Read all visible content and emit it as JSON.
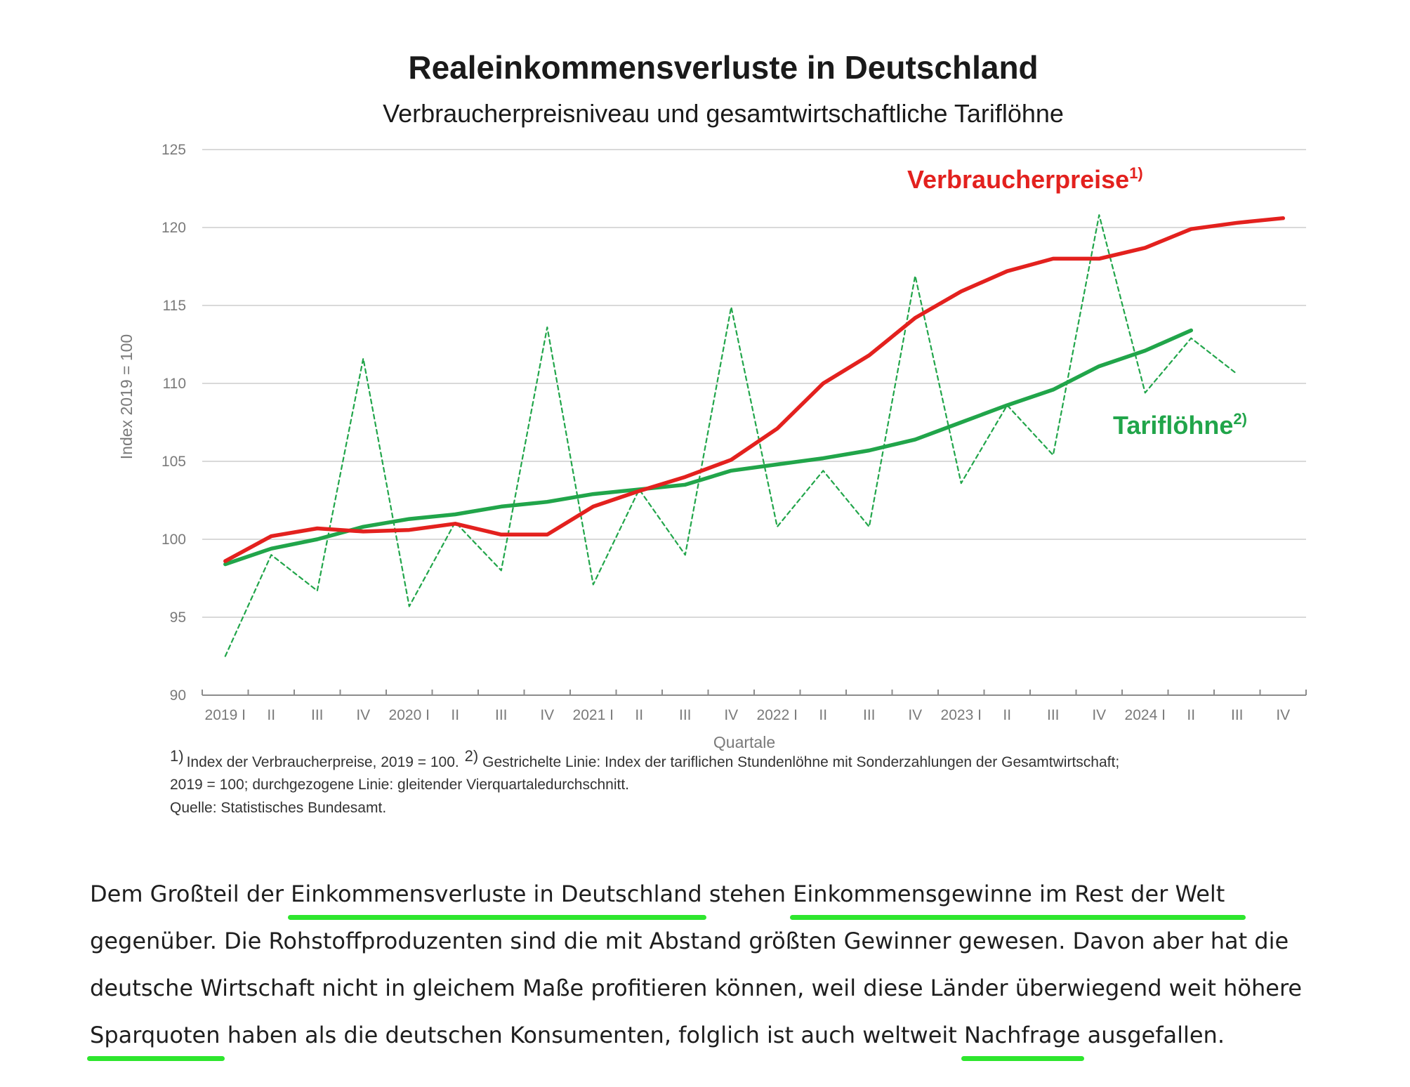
{
  "chart_data": {
    "type": "line",
    "title": "Realeinkommensverluste in Deutschland",
    "subtitle": "Verbraucherpreisniveau und gesamtwirtschaftliche Tariflöhne",
    "xlabel": "Quartale",
    "ylabel": "Index 2019 = 100",
    "ylim": [
      90,
      125
    ],
    "yticks": [
      90,
      95,
      100,
      105,
      110,
      115,
      120,
      125
    ],
    "grid": true,
    "categories": [
      "2019 I",
      "II",
      "III",
      "IV",
      "2020 I",
      "II",
      "III",
      "IV",
      "2021 I",
      "II",
      "III",
      "IV",
      "2022 I",
      "II",
      "III",
      "IV",
      "2023 I",
      "II",
      "III",
      "IV",
      "2024 I",
      "II",
      "III",
      "IV"
    ],
    "series": [
      {
        "name": "Verbraucherpreise",
        "sup": "1)",
        "style": "solid",
        "color": "#e3211e",
        "values": [
          98.6,
          100.2,
          100.7,
          100.5,
          100.6,
          101.0,
          100.3,
          100.3,
          102.1,
          103.1,
          104.0,
          105.1,
          107.1,
          110.0,
          111.8,
          114.2,
          115.9,
          117.2,
          118.0,
          118.0,
          118.7,
          119.9,
          120.3,
          120.6
        ]
      },
      {
        "name": "Tariflöhne",
        "sup": "2)",
        "style": "dashed",
        "color": "#21a54a",
        "values": [
          92.5,
          99.0,
          96.7,
          111.6,
          95.7,
          101.1,
          98.0,
          113.6,
          97.1,
          103.2,
          99.0,
          114.9,
          100.8,
          104.4,
          100.8,
          116.9,
          103.6,
          108.6,
          105.4,
          120.8,
          109.4,
          112.9,
          110.6,
          null
        ]
      },
      {
        "name": "Tariflöhne (gleitender Durchschnitt)",
        "style": "solid",
        "color": "#21a54a",
        "values": [
          98.4,
          99.4,
          100.0,
          100.8,
          101.3,
          101.6,
          102.1,
          102.4,
          102.9,
          103.2,
          103.5,
          104.4,
          104.8,
          105.2,
          105.7,
          106.4,
          107.5,
          108.6,
          109.6,
          111.1,
          112.1,
          113.4,
          null,
          null
        ]
      }
    ],
    "footnotes": [
      "Index der Verbraucherpreise, 2019 = 100. ",
      "Gestrichelte Linie: Index der tariflichen Stundenlöhne mit Sonderzahlungen der Gesamtwirtschaft;",
      "2019 = 100; durchgezogene Linie: gleitender Vierquartaledurchschnitt.",
      "Quelle: Statistisches Bundesamt."
    ],
    "footnote_marks": [
      "1)",
      "2)"
    ]
  },
  "article": {
    "p1": "Dem Großteil der ",
    "u1": "Einkommensverluste in Deutschland",
    "p2": " stehen ",
    "u2": "Einkommensgewinne im Rest der Welt",
    "p3": " gegenüber. Die Rohstoffproduzenten sind die mit Abstand größten Gewinner gewesen. Davon aber hat die deutsche Wirtschaft nicht in gleichem Maße profitieren können, weil diese Länder überwiegend weit höhere ",
    "u3": "Sparquoten",
    "p4": " haben als die deutschen Konsumenten, folglich ist auch weltweit ",
    "u4": "Nachfrage",
    "p5": " ausgefallen."
  },
  "colors": {
    "highlight": "#2ee62e",
    "red_series": "#e3211e",
    "green_series": "#21a54a"
  }
}
